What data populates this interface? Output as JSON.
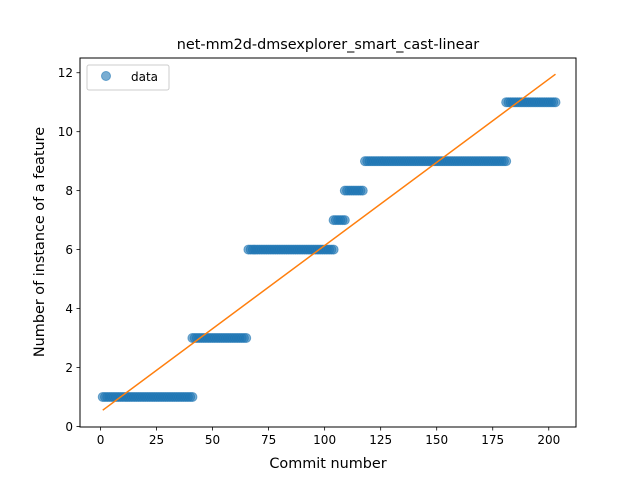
{
  "chart_data": {
    "type": "scatter",
    "title": "net-mm2d-dmsexplorer_smart_cast-linear",
    "xlabel": "Commit number",
    "ylabel": "Number of instance of a feature",
    "xlim": [
      -9.15,
      212.15
    ],
    "ylim": [
      -0.02,
      12.5
    ],
    "xticks": [
      0,
      25,
      50,
      75,
      100,
      125,
      150,
      175,
      200
    ],
    "yticks": [
      0,
      2,
      4,
      6,
      8,
      10,
      12
    ],
    "grid": false,
    "legend": {
      "placement": "top-left",
      "entries": [
        "data"
      ]
    },
    "colors": {
      "data": "#1f77b4",
      "fit": "#ff7f0e"
    },
    "series": [
      {
        "name": "data",
        "kind": "points",
        "steps": [
          {
            "x_start": 1,
            "x_end": 41,
            "y": 1
          },
          {
            "x_start": 41,
            "x_end": 65,
            "y": 3
          },
          {
            "x_start": 66,
            "x_end": 104,
            "y": 6
          },
          {
            "x_start": 104,
            "x_end": 109,
            "y": 7
          },
          {
            "x_start": 109,
            "x_end": 117,
            "y": 8
          },
          {
            "x_start": 118,
            "x_end": 181,
            "y": 9
          },
          {
            "x_start": 181,
            "x_end": 203,
            "y": 11
          }
        ]
      },
      {
        "kind": "line",
        "x": [
          1,
          203
        ],
        "y": [
          0.55,
          11.95
        ]
      }
    ]
  }
}
